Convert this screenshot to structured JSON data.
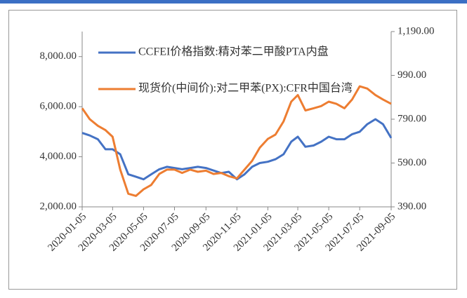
{
  "chart_data": {
    "type": "line",
    "x": [
      "2020-01-05",
      "2020-01-20",
      "2020-02-05",
      "2020-02-20",
      "2020-03-05",
      "2020-03-20",
      "2020-04-05",
      "2020-04-20",
      "2020-05-05",
      "2020-05-20",
      "2020-06-05",
      "2020-06-20",
      "2020-07-05",
      "2020-07-20",
      "2020-08-05",
      "2020-08-20",
      "2020-09-05",
      "2020-09-20",
      "2020-10-05",
      "2020-10-20",
      "2020-11-05",
      "2020-11-20",
      "2020-12-05",
      "2020-12-20",
      "2021-01-05",
      "2021-01-20",
      "2021-02-05",
      "2021-02-20",
      "2021-03-05",
      "2021-03-20",
      "2021-04-05",
      "2021-04-20",
      "2021-05-05",
      "2021-05-20",
      "2021-06-05",
      "2021-06-20",
      "2021-07-05",
      "2021-07-20",
      "2021-08-05",
      "2021-08-20",
      "2021-09-05"
    ],
    "series": [
      {
        "name": "CCFEI价格指数:精对苯二甲酸PTA内盘",
        "color": "#4472c4",
        "axis": "y",
        "values": [
          4950,
          4850,
          4700,
          4300,
          4300,
          4100,
          3300,
          3200,
          3100,
          3300,
          3500,
          3600,
          3550,
          3500,
          3550,
          3600,
          3550,
          3450,
          3350,
          3400,
          3100,
          3300,
          3600,
          3750,
          3800,
          3900,
          4100,
          4600,
          4800,
          4400,
          4450,
          4600,
          4800,
          4700,
          4700,
          4900,
          5000,
          5300,
          5500,
          5300,
          4750
        ]
      },
      {
        "name": "现货价(中间价):对二甲苯(PX):CFR中国台湾",
        "color": "#ed7d31",
        "axis": "y2",
        "values": [
          840,
          790,
          760,
          740,
          710,
          560,
          450,
          440,
          470,
          490,
          540,
          560,
          560,
          545,
          560,
          550,
          555,
          540,
          545,
          530,
          520,
          560,
          600,
          660,
          700,
          720,
          780,
          870,
          900,
          830,
          840,
          850,
          870,
          860,
          840,
          880,
          940,
          930,
          900,
          880,
          860
        ]
      }
    ],
    "xlim": [
      "2020-01-05",
      "2021-09-05"
    ],
    "xticks": [
      "2020-01-05",
      "2020-03-05",
      "2020-05-05",
      "2020-07-05",
      "2020-09-05",
      "2020-11-05",
      "2021-01-05",
      "2021-03-05",
      "2021-05-05",
      "2021-07-05",
      "2021-09-05"
    ],
    "ylim": [
      2000,
      9000
    ],
    "yticks": [
      {
        "value": 2000,
        "label": "2,000.00"
      },
      {
        "value": 4000,
        "label": "4,000.00"
      },
      {
        "value": 6000,
        "label": "6,000.00"
      },
      {
        "value": 8000,
        "label": "8,000.00"
      }
    ],
    "y2lim": [
      390,
      1190
    ],
    "y2ticks": [
      {
        "value": 390,
        "label": "390.00"
      },
      {
        "value": 590,
        "label": "590.00"
      },
      {
        "value": 790,
        "label": "790.00"
      },
      {
        "value": 990,
        "label": "990.00"
      },
      {
        "value": 1190,
        "label": "1,190.00"
      }
    ],
    "grid": false
  }
}
